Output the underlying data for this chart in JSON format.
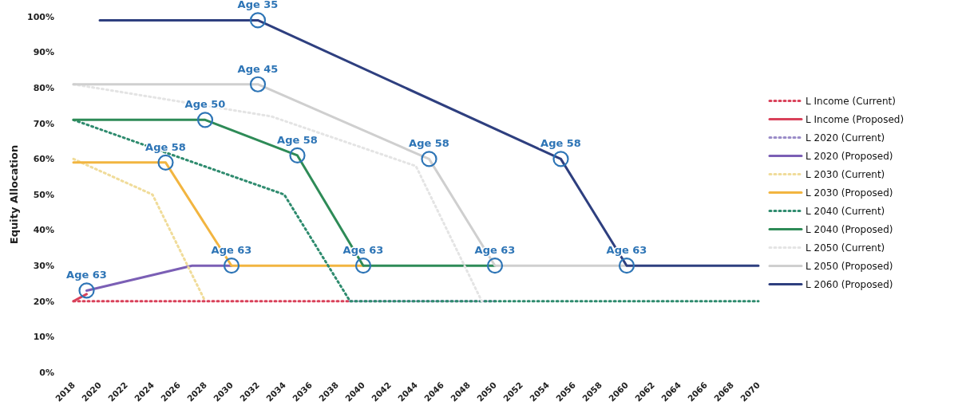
{
  "chart_data": {
    "type": "line",
    "ylabel": "Equity Allocation",
    "xlim": [
      2018,
      2070
    ],
    "xticks": [
      2018,
      2020,
      2022,
      2024,
      2026,
      2028,
      2030,
      2032,
      2034,
      2036,
      2038,
      2040,
      2042,
      2044,
      2046,
      2048,
      2050,
      2052,
      2054,
      2056,
      2058,
      2060,
      2062,
      2064,
      2066,
      2068,
      2070
    ],
    "ylim": [
      0,
      100
    ],
    "yticks": [
      {
        "value": 0,
        "label": "0%"
      },
      {
        "value": 10,
        "label": "10%"
      },
      {
        "value": 20,
        "label": "20%"
      },
      {
        "value": 30,
        "label": "30%"
      },
      {
        "value": 40,
        "label": "40%"
      },
      {
        "value": 50,
        "label": "50%"
      },
      {
        "value": 60,
        "label": "60%"
      },
      {
        "value": 70,
        "label": "70%"
      },
      {
        "value": 80,
        "label": "80%"
      },
      {
        "value": 90,
        "label": "90%"
      },
      {
        "value": 100,
        "label": "100%"
      }
    ],
    "grid": false,
    "legend": "right",
    "series": [
      {
        "name": "L Income (Current)",
        "color": "#d9415a",
        "line_style": "dotted",
        "x": [
          2018,
          2039
        ],
        "values": [
          20,
          20
        ]
      },
      {
        "name": "L Income (Proposed)",
        "color": "#d9415a",
        "line_style": "solid",
        "x": [
          2018,
          2019
        ],
        "values": [
          20,
          22
        ]
      },
      {
        "name": "L 2020 (Current)",
        "color": "#9a8cc8",
        "line_style": "dotted",
        "x": [
          2039,
          2050
        ],
        "values": [
          20,
          20
        ]
      },
      {
        "name": "L 2020 (Proposed)",
        "color": "#7b5fb5",
        "line_style": "solid",
        "x": [
          2019,
          2027,
          2030
        ],
        "values": [
          23,
          30,
          30
        ]
      },
      {
        "name": "L 2030 (Current)",
        "color": "#f0dc9a",
        "line_style": "dotted",
        "x": [
          2018,
          2024,
          2028
        ],
        "values": [
          60,
          50,
          20
        ]
      },
      {
        "name": "L 2030 (Proposed)",
        "color": "#f2b540",
        "line_style": "solid",
        "x": [
          2018,
          2025,
          2030,
          2040
        ],
        "values": [
          59,
          59,
          30,
          30
        ]
      },
      {
        "name": "L 2040 (Current)",
        "color": "#2e8b6e",
        "line_style": "dotted",
        "x": [
          2018,
          2034,
          2039,
          2070
        ],
        "values": [
          71,
          50,
          20,
          20
        ]
      },
      {
        "name": "L 2040 (Proposed)",
        "color": "#2e8b57",
        "line_style": "solid",
        "x": [
          2018,
          2028,
          2035,
          2040,
          2050
        ],
        "values": [
          71,
          71,
          61,
          30,
          30
        ]
      },
      {
        "name": "L 2050 (Current)",
        "color": "#e4e4e4",
        "line_style": "dotted",
        "x": [
          2018,
          2033,
          2044,
          2049
        ],
        "values": [
          81,
          72,
          58,
          20
        ]
      },
      {
        "name": "L 2050 (Proposed)",
        "color": "#cfcfcf",
        "line_style": "solid",
        "x": [
          2018,
          2032,
          2045,
          2050,
          2060
        ],
        "values": [
          81,
          81,
          60,
          30,
          30
        ]
      },
      {
        "name": "L 2060 (Proposed)",
        "color": "#2e3f7f",
        "line_style": "solid",
        "x": [
          2020,
          2032,
          2055,
          2060,
          2070
        ],
        "values": [
          99,
          99,
          60,
          30,
          30
        ]
      }
    ],
    "annotations": [
      {
        "text": "Age 35",
        "x": 2032,
        "y": 99
      },
      {
        "text": "Age 45",
        "x": 2032,
        "y": 81
      },
      {
        "text": "Age 50",
        "x": 2028,
        "y": 71
      },
      {
        "text": "Age 58",
        "x": 2025,
        "y": 59
      },
      {
        "text": "Age 58",
        "x": 2035,
        "y": 61
      },
      {
        "text": "Age 58",
        "x": 2045,
        "y": 60
      },
      {
        "text": "Age 58",
        "x": 2055,
        "y": 60
      },
      {
        "text": "Age 63",
        "x": 2019,
        "y": 23
      },
      {
        "text": "Age 63",
        "x": 2030,
        "y": 30
      },
      {
        "text": "Age 63",
        "x": 2040,
        "y": 30
      },
      {
        "text": "Age 63",
        "x": 2050,
        "y": 30
      },
      {
        "text": "Age 63",
        "x": 2060,
        "y": 30
      }
    ]
  }
}
